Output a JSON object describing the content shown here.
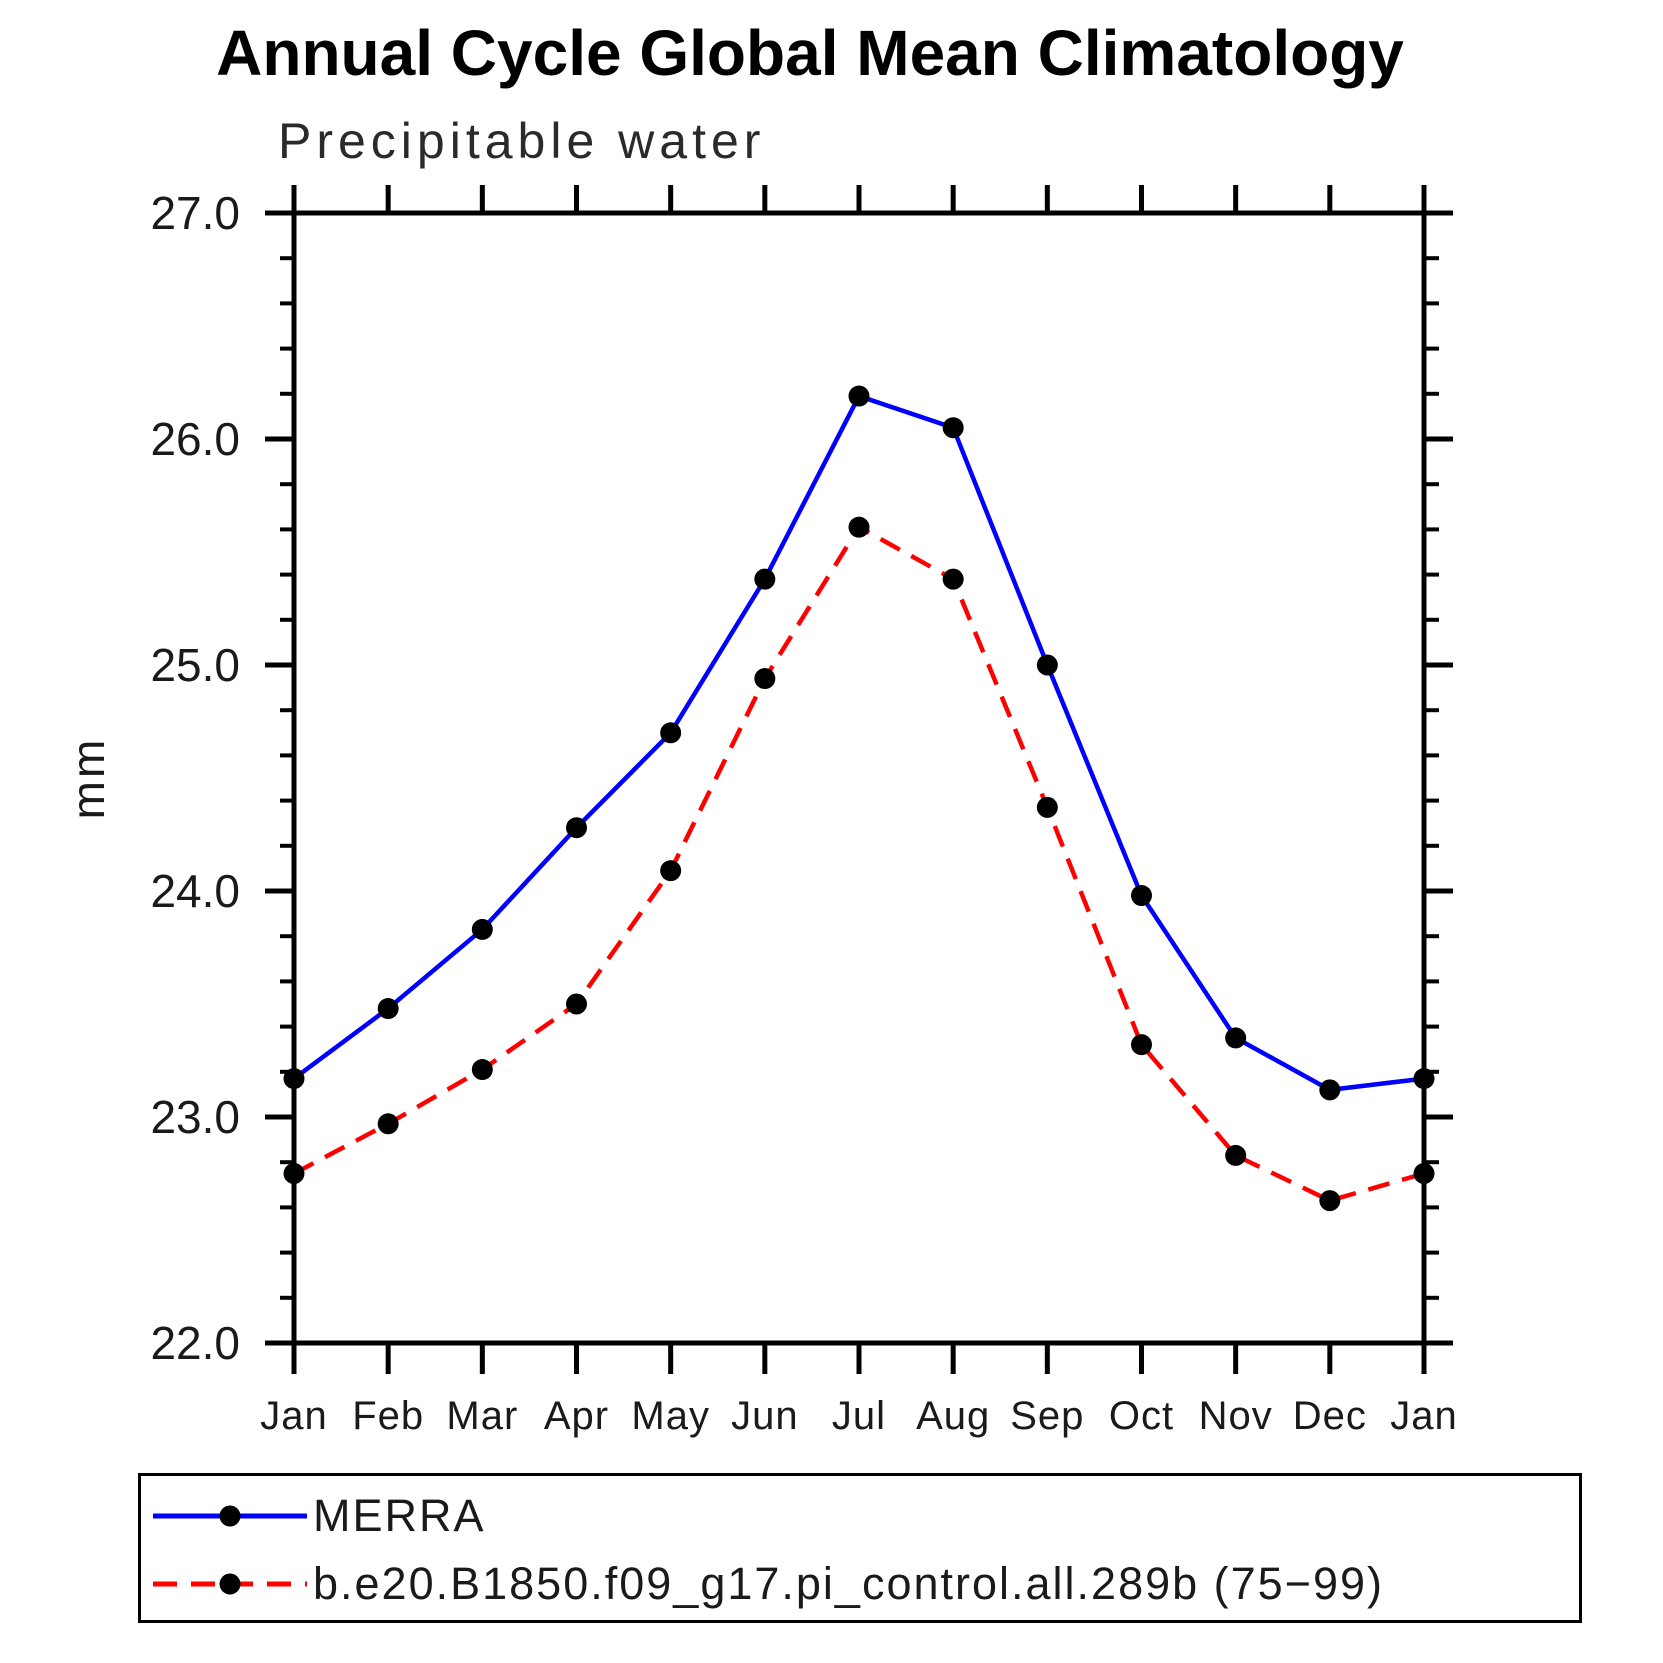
{
  "chart_data": {
    "type": "line",
    "title": "Annual Cycle Global Mean Climatology",
    "subtitle": "Precipitable water",
    "ylabel": "mm",
    "x_categories": [
      "Jan",
      "Feb",
      "Mar",
      "Apr",
      "May",
      "Jun",
      "Jul",
      "Aug",
      "Sep",
      "Oct",
      "Nov",
      "Dec",
      "Jan"
    ],
    "ylim": [
      22.0,
      27.0
    ],
    "y_tick_values": [
      22,
      23,
      24,
      25,
      26,
      27
    ],
    "y_tick_labels": [
      "22.0",
      "23.0",
      "24.0",
      "25.0",
      "26.0",
      "27.0"
    ],
    "y_minor_step": 0.2,
    "grid": "off",
    "legend_position": "bottom",
    "marker": "filled-circle",
    "marker_color": "#000000",
    "axis_color": "#000000",
    "series": [
      {
        "name": "MERRA",
        "color": "#0000ff",
        "style": "solid",
        "values": [
          23.17,
          23.48,
          23.83,
          24.28,
          24.7,
          25.38,
          26.19,
          26.05,
          25.0,
          23.98,
          23.35,
          23.12,
          23.17
        ]
      },
      {
        "name": "b.e20.B1850.f09_g17.pi_control.all.289b (75−99)",
        "color": "#ff0000",
        "style": "dashed",
        "values": [
          22.75,
          22.97,
          23.21,
          23.5,
          24.09,
          24.94,
          25.61,
          25.38,
          24.37,
          23.32,
          22.83,
          22.63,
          22.75
        ]
      }
    ]
  }
}
